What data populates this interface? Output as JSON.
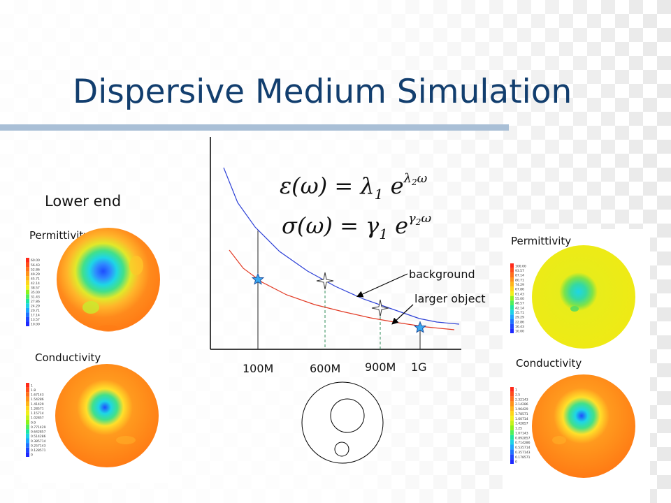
{
  "slide": {
    "title": "Dispersive Medium Simulation",
    "subtitle": "Lower end"
  },
  "left_panel": {
    "top_label": "Permittivity",
    "bottom_label": "Conductivity",
    "perm_scale": [
      "60.00",
      "56.43",
      "52.86",
      "49.29",
      "45.71",
      "42.14",
      "38.57",
      "35.00",
      "31.43",
      "27.86",
      "24.29",
      "20.71",
      "17.14",
      "13.57",
      "10.00"
    ],
    "cond_scale": [
      "1",
      "1.8",
      "1.67143",
      "1.54286",
      "1.41429",
      "1.28571",
      "1.15714",
      "1.02857",
      "0.9",
      "0.771429",
      "0.642857",
      "0.514286",
      "0.385714",
      "0.257143",
      "0.128571",
      "0"
    ]
  },
  "right_panel": {
    "top_label": "Permittivity",
    "bottom_label": "Conductivity",
    "perm_scale": [
      "100.00",
      "93.57",
      "87.14",
      "80.71",
      "74.29",
      "67.86",
      "61.43",
      "55.00",
      "48.57",
      "42.14",
      "35.71",
      "29.29",
      "22.86",
      "16.43",
      "10.00"
    ],
    "cond_scale": [
      "1",
      "2.5",
      "2.32143",
      "2.14286",
      "1.96429",
      "1.78571",
      "1.60714",
      "1.42857",
      "1.25",
      "1.07143",
      "0.892857",
      "0.714286",
      "0.535714",
      "0.357143",
      "0.178571",
      "0"
    ]
  },
  "plot": {
    "x_ticks": [
      "100M",
      "600M",
      "900M",
      "1G"
    ],
    "annotation_background": "background",
    "annotation_object": "larger object",
    "eq_epsilon": "ε(ω) = λ1 e^(λ2 ω)",
    "eq_sigma": "σ(ω) = γ1 e^(γ2 ω)",
    "background_curve_color": "#2b3fd6",
    "object_curve_color": "#e23a24"
  },
  "colors": {
    "title": "#123e6e",
    "bar": "#a9bfd6",
    "map_orange": "#ff8a1c",
    "map_blue": "#1e4cff"
  }
}
